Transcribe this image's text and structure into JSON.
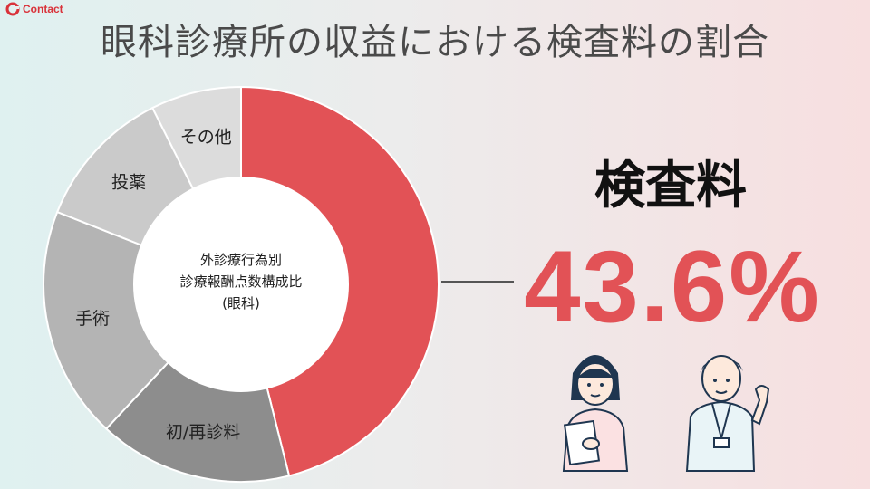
{
  "brand": {
    "logo_text": "Contact",
    "logo_icon": "contact-logo-icon",
    "accent": "#d9323a"
  },
  "title": "眼科診療所の収益における検査料の割合",
  "highlight": {
    "name": "検査料",
    "value": "43.6%",
    "color": "#e25256"
  },
  "illustrations": [
    {
      "name": "nurse-woman-illustration"
    },
    {
      "name": "nurse-man-illustration"
    }
  ],
  "chart_data": {
    "type": "pie",
    "donut": true,
    "center_label": [
      "外診療行為別",
      "診療報酬点数構成比",
      "(眼科)"
    ],
    "categories": [
      "検査料",
      "初/再診料",
      "手術",
      "投薬",
      "その他"
    ],
    "values": [
      43.6,
      15.0,
      18.0,
      11.0,
      7.0
    ],
    "labels": [
      "",
      "初/再診料",
      "手術",
      "投薬",
      "その他"
    ],
    "colors": [
      "#e25256",
      "#8d8d8d",
      "#b4b4b4",
      "#cacaca",
      "#dcdcdc"
    ]
  }
}
